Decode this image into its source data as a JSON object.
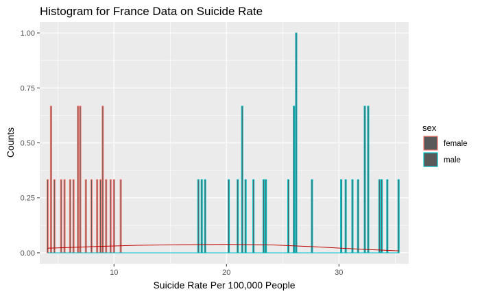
{
  "chart_data": {
    "type": "histogram",
    "title": "Histogram for France Data on Suicide Rate",
    "xlabel": "Suicide Rate Per 100,000 People",
    "ylabel": "Counts",
    "xlim": [
      3.4,
      36.2
    ],
    "ylim": [
      -0.05,
      1.05
    ],
    "x_ticks": [
      10,
      20,
      30
    ],
    "x_tick_labels": [
      "10",
      "20",
      "30"
    ],
    "y_ticks": [
      0,
      0.25,
      0.5,
      0.75,
      1.0
    ],
    "y_tick_labels": [
      "0.00",
      "0.25",
      "0.50",
      "0.75",
      "1.00"
    ],
    "grid": true,
    "legend": {
      "title": "sex",
      "position": "right"
    },
    "colors": {
      "female": "#F8766D",
      "male": "#00BFC4",
      "fill": "#595959",
      "density_line": "#C00000",
      "panel": "#EBEBEB",
      "grid": "#FFFFFF"
    },
    "series": [
      {
        "name": "female",
        "color": "#F8766D",
        "bars": [
          {
            "x": 4.1,
            "count": 0.333
          },
          {
            "x": 4.4,
            "count": 0.667
          },
          {
            "x": 4.7,
            "count": 0.333
          },
          {
            "x": 5.3,
            "count": 0.333
          },
          {
            "x": 5.6,
            "count": 0.333
          },
          {
            "x": 6.1,
            "count": 0.333
          },
          {
            "x": 6.4,
            "count": 0.333
          },
          {
            "x": 6.8,
            "count": 0.667
          },
          {
            "x": 7.0,
            "count": 0.667
          },
          {
            "x": 7.5,
            "count": 0.333
          },
          {
            "x": 8.0,
            "count": 0.333
          },
          {
            "x": 8.5,
            "count": 0.333
          },
          {
            "x": 8.8,
            "count": 0.333
          },
          {
            "x": 9.0,
            "count": 0.667
          },
          {
            "x": 9.3,
            "count": 0.333
          },
          {
            "x": 9.7,
            "count": 0.333
          },
          {
            "x": 10.0,
            "count": 0.333
          },
          {
            "x": 10.6,
            "count": 0.333
          }
        ]
      },
      {
        "name": "male",
        "color": "#00BFC4",
        "bars": [
          {
            "x": 17.5,
            "count": 0.333
          },
          {
            "x": 17.8,
            "count": 0.333
          },
          {
            "x": 18.1,
            "count": 0.333
          },
          {
            "x": 20.2,
            "count": 0.333
          },
          {
            "x": 21.0,
            "count": 0.333
          },
          {
            "x": 21.4,
            "count": 0.667
          },
          {
            "x": 21.7,
            "count": 0.333
          },
          {
            "x": 22.4,
            "count": 0.333
          },
          {
            "x": 23.3,
            "count": 0.333
          },
          {
            "x": 23.5,
            "count": 0.333
          },
          {
            "x": 25.5,
            "count": 0.333
          },
          {
            "x": 26.0,
            "count": 0.667
          },
          {
            "x": 26.2,
            "count": 1.0
          },
          {
            "x": 27.6,
            "count": 0.333
          },
          {
            "x": 30.2,
            "count": 0.333
          },
          {
            "x": 30.6,
            "count": 0.333
          },
          {
            "x": 31.2,
            "count": 0.333
          },
          {
            "x": 31.7,
            "count": 0.333
          },
          {
            "x": 32.3,
            "count": 0.667
          },
          {
            "x": 32.6,
            "count": 0.667
          },
          {
            "x": 33.6,
            "count": 0.333
          },
          {
            "x": 33.8,
            "count": 0.333
          },
          {
            "x": 34.3,
            "count": 0.333
          },
          {
            "x": 35.3,
            "count": 0.333
          }
        ]
      }
    ],
    "density": [
      {
        "name": "female",
        "color": "#C00000",
        "points": [
          [
            4.1,
            0.021
          ],
          [
            8,
            0.028
          ],
          [
            12,
            0.034
          ],
          [
            16,
            0.037
          ],
          [
            20,
            0.038
          ],
          [
            24,
            0.036
          ],
          [
            28,
            0.027
          ],
          [
            32,
            0.016
          ],
          [
            35.3,
            0.009
          ]
        ]
      },
      {
        "name": "male",
        "color": "#00BFC4",
        "points": [
          [
            4.1,
            0.0
          ],
          [
            35.3,
            0.0
          ]
        ]
      }
    ]
  }
}
